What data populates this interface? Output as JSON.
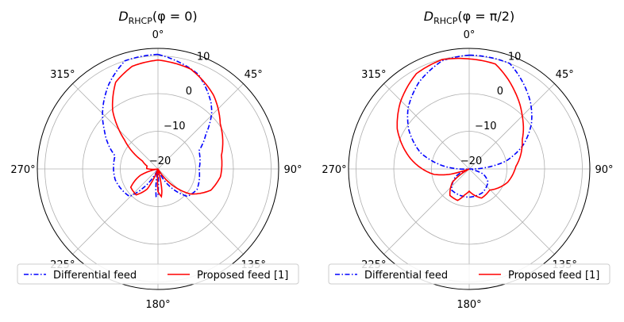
{
  "chart_data": [
    {
      "type": "polar-line",
      "title": {
        "symbol": "D",
        "subscript": "RHCP",
        "argument": "(φ = 0)"
      },
      "theta_direction": "clockwise",
      "theta_zero": "top",
      "theta_ticks": [
        "0°",
        "45°",
        "90°",
        "135°",
        "180°",
        "225°",
        "270°",
        "315°"
      ],
      "r_ticks": [
        "−20",
        "−10",
        "0",
        "10"
      ],
      "r_tick_values": [
        -20,
        -10,
        0,
        10
      ],
      "rlim": [
        -20,
        12
      ],
      "grid": true,
      "legend": "bottom",
      "series": [
        {
          "name": "Differential feed",
          "color": "#0000ff",
          "style": "dashdot",
          "points": [
            [
              0,
              10.4
            ],
            [
              23,
              7.3
            ],
            [
              39,
              2.4
            ],
            [
              44,
              0.5
            ],
            [
              54,
              -4.3
            ],
            [
              66,
              -8.1
            ],
            [
              90,
              -9.1
            ],
            [
              118,
              -8.3
            ],
            [
              133,
              -9.3
            ],
            [
              150,
              -16
            ],
            [
              160,
              -20
            ],
            [
              176,
              -20
            ],
            [
              180,
              -13
            ],
            [
              184,
              -12.7
            ],
            [
              192,
              -20
            ],
            [
              205,
              -20
            ],
            [
              215,
              -15
            ],
            [
              226,
              -9.5
            ],
            [
              256,
              -8.3
            ],
            [
              287,
              -8.1
            ],
            [
              306,
              -2.4
            ],
            [
              315,
              0.8
            ],
            [
              330,
              6
            ],
            [
              343,
              10
            ],
            [
              360,
              10.4
            ]
          ]
        },
        {
          "name": "Proposed feed [1]",
          "color": "#ff0000",
          "style": "solid",
          "points": [
            [
              0,
              8.9
            ],
            [
              18,
              7.9
            ],
            [
              37,
              4.5
            ],
            [
              54,
              0.4
            ],
            [
              78,
              -2.8
            ],
            [
              97,
              -3.3
            ],
            [
              112,
              -4.9
            ],
            [
              128,
              -9.2
            ],
            [
              140,
              -15
            ],
            [
              150,
              -20
            ],
            [
              165,
              -20
            ],
            [
              170,
              -14
            ],
            [
              173,
              -12.6
            ],
            [
              180,
              -14
            ],
            [
              185,
              -20
            ],
            [
              200,
              -20
            ],
            [
              208,
              -14
            ],
            [
              220,
              -11
            ],
            [
              236,
              -11.3
            ],
            [
              250,
              -15
            ],
            [
              260,
              -20
            ],
            [
              272,
              -17
            ],
            [
              285,
              -17
            ],
            [
              297,
              -15.4
            ],
            [
              311,
              -8.2
            ],
            [
              322,
              -0.5
            ],
            [
              334,
              5.6
            ],
            [
              346,
              8.1
            ],
            [
              360,
              8.9
            ]
          ]
        }
      ]
    },
    {
      "type": "polar-line",
      "title": {
        "symbol": "D",
        "subscript": "RHCP",
        "argument": "(φ = π/2)"
      },
      "theta_direction": "clockwise",
      "theta_zero": "top",
      "theta_ticks": [
        "0°",
        "45°",
        "90°",
        "135°",
        "180°",
        "225°",
        "270°",
        "315°"
      ],
      "r_ticks": [
        "−20",
        "−10",
        "0",
        "10"
      ],
      "r_tick_values": [
        -20,
        -10,
        0,
        10
      ],
      "rlim": [
        -20,
        12
      ],
      "grid": true,
      "legend": "bottom",
      "series": [
        {
          "name": "Differential feed",
          "color": "#0000ff",
          "style": "dashdot",
          "points": [
            [
              0,
              10.2
            ],
            [
              21,
              10
            ],
            [
              43,
              3.9
            ],
            [
              54,
              0.4
            ],
            [
              66,
              -4.3
            ],
            [
              78,
              -10.1
            ],
            [
              86,
              -16
            ],
            [
              92,
              -20
            ],
            [
              100,
              -20
            ],
            [
              110,
              -16
            ],
            [
              125,
              -13.9
            ],
            [
              150,
              -12.8
            ],
            [
              180,
              -12.5
            ],
            [
              200,
              -12.6
            ],
            [
              220,
              -12.7
            ],
            [
              240,
              -15.8
            ],
            [
              255,
              -20
            ],
            [
              266,
              -20
            ],
            [
              275,
              -14
            ],
            [
              288,
              -6.6
            ],
            [
              303,
              -0.9
            ],
            [
              315,
              2.9
            ],
            [
              330,
              6.6
            ],
            [
              346,
              9.6
            ],
            [
              360,
              10.2
            ]
          ]
        },
        {
          "name": "Proposed feed [1]",
          "color": "#ff0000",
          "style": "solid",
          "points": [
            [
              0,
              9.2
            ],
            [
              14,
              8.7
            ],
            [
              31,
              3.7
            ],
            [
              45,
              -0.1
            ],
            [
              61,
              -3.9
            ],
            [
              87,
              -7.6
            ],
            [
              109,
              -9.2
            ],
            [
              125,
              -11
            ],
            [
              136,
              -12.2
            ],
            [
              157,
              -11.6
            ],
            [
              170,
              -13
            ],
            [
              180,
              -14.1
            ],
            [
              190,
              -13
            ],
            [
              200,
              -11.1
            ],
            [
              216,
              -11.3
            ],
            [
              232,
              -14.4
            ],
            [
              242,
              -20
            ],
            [
              250,
              -20
            ],
            [
              254,
              -15
            ],
            [
              261,
              -10.6
            ],
            [
              280,
              -4.2
            ],
            [
              299,
              1.8
            ],
            [
              314,
              5.4
            ],
            [
              331,
              8.9
            ],
            [
              346,
              9.9
            ],
            [
              360,
              9.2
            ]
          ]
        }
      ]
    }
  ]
}
